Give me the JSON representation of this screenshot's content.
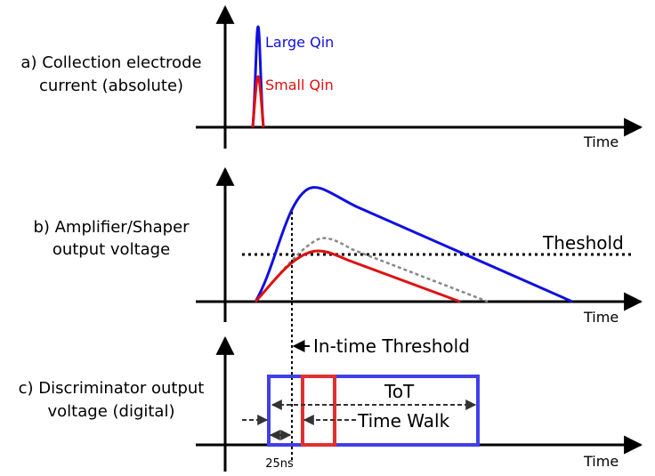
{
  "panel_a": {
    "label_line1": "a) Collection electrode",
    "label_line2": "current (absolute)",
    "large_label": "Large Qin",
    "small_label": "Small Qin",
    "axis_label": "Time"
  },
  "panel_b": {
    "label_line1": "b) Amplifier/Shaper",
    "label_line2": "output voltage",
    "threshold_label": "Theshold",
    "axis_label": "Time"
  },
  "panel_c": {
    "label_line1": "c) Discriminator output",
    "label_line2": "voltage (digital)",
    "tot_label": "ToT",
    "walk_label": "Time Walk",
    "intime_label": "In-time Threshold",
    "ns_label": "25ns",
    "axis_label": "Time"
  },
  "colors": {
    "large": "#1010e0",
    "small": "#e01010",
    "digital_large": "#4040e8",
    "digital_small": "#e03030",
    "ghost": "#888888"
  }
}
